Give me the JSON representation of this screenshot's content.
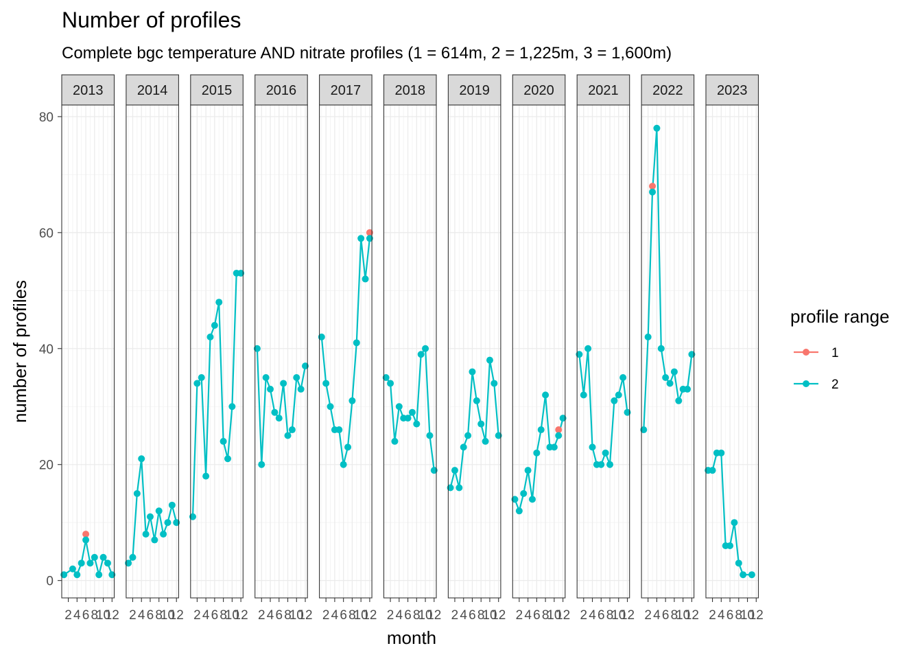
{
  "chart_data": {
    "type": "line",
    "title": "Number of profiles",
    "subtitle": "Complete bgc temperature AND nitrate profiles (1 = 614m, 2 = 1,225m, 3 = 1,600m)",
    "xlabel": "month",
    "ylabel": "number of profiles",
    "ylim": [
      -3,
      82
    ],
    "yticks": [
      0,
      20,
      40,
      60,
      80
    ],
    "xlim": [
      0.5,
      12.5
    ],
    "xticks": [
      2,
      4,
      6,
      8,
      10,
      12
    ],
    "xtick_labels": [
      "2",
      "4",
      "6",
      "8",
      "10",
      "12"
    ],
    "grid": true,
    "facets": [
      "2013",
      "2014",
      "2015",
      "2016",
      "2017",
      "2018",
      "2019",
      "2020",
      "2021",
      "2022",
      "2023"
    ],
    "legend": {
      "title": "profile range",
      "position": "right",
      "entries": [
        {
          "label": "1",
          "color": "#F8766D"
        },
        {
          "label": "2",
          "color": "#00BFC4"
        }
      ]
    },
    "series": [
      {
        "name": "1",
        "color": "#F8766D",
        "facets": {
          "2013": [
            [
              6,
              8
            ]
          ],
          "2017": [
            [
              12,
              60
            ]
          ],
          "2020": [
            [
              11,
              26
            ]
          ],
          "2022": [
            [
              3,
              68
            ]
          ]
        }
      },
      {
        "name": "2",
        "color": "#00BFC4",
        "facets": {
          "2013": [
            [
              1,
              1
            ],
            [
              3,
              2
            ],
            [
              4,
              1
            ],
            [
              5,
              3
            ],
            [
              6,
              7
            ],
            [
              7,
              3
            ],
            [
              8,
              4
            ],
            [
              9,
              1
            ],
            [
              10,
              4
            ],
            [
              11,
              3
            ],
            [
              12,
              1
            ]
          ],
          "2014": [
            [
              1,
              3
            ],
            [
              2,
              4
            ],
            [
              3,
              15
            ],
            [
              4,
              21
            ],
            [
              5,
              8
            ],
            [
              6,
              11
            ],
            [
              7,
              7
            ],
            [
              8,
              12
            ],
            [
              9,
              8
            ],
            [
              10,
              10
            ],
            [
              11,
              13
            ],
            [
              12,
              10
            ]
          ],
          "2015": [
            [
              1,
              11
            ],
            [
              2,
              34
            ],
            [
              3,
              35
            ],
            [
              4,
              18
            ],
            [
              5,
              42
            ],
            [
              6,
              44
            ],
            [
              7,
              48
            ],
            [
              8,
              24
            ],
            [
              9,
              21
            ],
            [
              10,
              30
            ],
            [
              11,
              53
            ],
            [
              12,
              53
            ]
          ],
          "2016": [
            [
              1,
              40
            ],
            [
              2,
              20
            ],
            [
              3,
              35
            ],
            [
              4,
              33
            ],
            [
              5,
              29
            ],
            [
              6,
              28
            ],
            [
              7,
              34
            ],
            [
              8,
              25
            ],
            [
              9,
              26
            ],
            [
              10,
              35
            ],
            [
              11,
              33
            ],
            [
              12,
              37
            ]
          ],
          "2017": [
            [
              1,
              42
            ],
            [
              2,
              34
            ],
            [
              3,
              30
            ],
            [
              4,
              26
            ],
            [
              5,
              26
            ],
            [
              6,
              20
            ],
            [
              7,
              23
            ],
            [
              8,
              31
            ],
            [
              9,
              41
            ],
            [
              10,
              59
            ],
            [
              11,
              52
            ],
            [
              12,
              59
            ]
          ],
          "2018": [
            [
              1,
              35
            ],
            [
              2,
              34
            ],
            [
              3,
              24
            ],
            [
              4,
              30
            ],
            [
              5,
              28
            ],
            [
              6,
              28
            ],
            [
              7,
              29
            ],
            [
              8,
              27
            ],
            [
              9,
              39
            ],
            [
              10,
              40
            ],
            [
              11,
              25
            ],
            [
              12,
              19
            ]
          ],
          "2019": [
            [
              1,
              16
            ],
            [
              2,
              19
            ],
            [
              3,
              16
            ],
            [
              4,
              23
            ],
            [
              5,
              25
            ],
            [
              6,
              36
            ],
            [
              7,
              31
            ],
            [
              8,
              27
            ],
            [
              9,
              24
            ],
            [
              10,
              38
            ],
            [
              11,
              34
            ],
            [
              12,
              25
            ]
          ],
          "2020": [
            [
              1,
              14
            ],
            [
              2,
              12
            ],
            [
              3,
              15
            ],
            [
              4,
              19
            ],
            [
              5,
              14
            ],
            [
              6,
              22
            ],
            [
              7,
              26
            ],
            [
              8,
              32
            ],
            [
              9,
              23
            ],
            [
              10,
              23
            ],
            [
              11,
              25
            ],
            [
              12,
              28
            ]
          ],
          "2021": [
            [
              1,
              39
            ],
            [
              2,
              32
            ],
            [
              3,
              40
            ],
            [
              4,
              23
            ],
            [
              5,
              20
            ],
            [
              6,
              20
            ],
            [
              7,
              22
            ],
            [
              8,
              20
            ],
            [
              9,
              31
            ],
            [
              10,
              32
            ],
            [
              11,
              35
            ],
            [
              12,
              29
            ]
          ],
          "2022": [
            [
              1,
              26
            ],
            [
              2,
              42
            ],
            [
              3,
              67
            ],
            [
              4,
              78
            ],
            [
              5,
              40
            ],
            [
              6,
              35
            ],
            [
              7,
              34
            ],
            [
              8,
              36
            ],
            [
              9,
              31
            ],
            [
              10,
              33
            ],
            [
              11,
              33
            ],
            [
              12,
              39
            ]
          ],
          "2023": [
            [
              1,
              19
            ],
            [
              2,
              19
            ],
            [
              3,
              22
            ],
            [
              4,
              22
            ],
            [
              5,
              6
            ],
            [
              6,
              6
            ],
            [
              7,
              10
            ],
            [
              8,
              3
            ],
            [
              9,
              1
            ],
            [
              11,
              1
            ]
          ]
        }
      }
    ]
  }
}
